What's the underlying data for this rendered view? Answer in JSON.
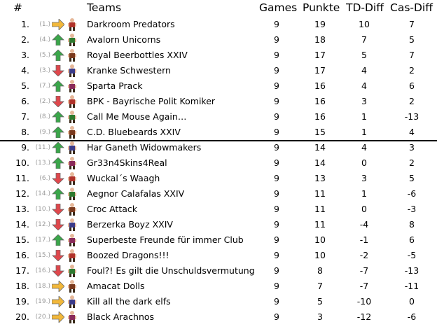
{
  "headers": {
    "rank": "#",
    "teams": "Teams",
    "games": "Games",
    "punkte": "Punkte",
    "td_diff": "TD-Diff",
    "cas_diff": "Cas-Diff"
  },
  "colors": {
    "up": "#3aa74a",
    "down": "#e0474c",
    "same": "#f2b83a"
  },
  "rows": [
    {
      "rank": "1.",
      "prev": "(1.)",
      "trend": "same",
      "icon": "player-sprite-icon",
      "team": "Darkroom Predators",
      "games": "9",
      "punkte": "19",
      "td": "10",
      "cas": "7"
    },
    {
      "rank": "2.",
      "prev": "(4.)",
      "trend": "up",
      "icon": "player-sprite-icon",
      "team": "Avalorn Unicorns",
      "games": "9",
      "punkte": "18",
      "td": "7",
      "cas": "5"
    },
    {
      "rank": "3.",
      "prev": "(5.)",
      "trend": "up",
      "icon": "player-sprite-icon",
      "team": "Royal Beerbottles XXIV",
      "games": "9",
      "punkte": "17",
      "td": "5",
      "cas": "7"
    },
    {
      "rank": "4.",
      "prev": "(3.)",
      "trend": "down",
      "icon": "player-sprite-icon",
      "team": "Kranke Schwestern",
      "games": "9",
      "punkte": "17",
      "td": "4",
      "cas": "2"
    },
    {
      "rank": "5.",
      "prev": "(7.)",
      "trend": "up",
      "icon": "player-sprite-icon",
      "team": "Sparta Prack",
      "games": "9",
      "punkte": "16",
      "td": "4",
      "cas": "6"
    },
    {
      "rank": "6.",
      "prev": "(2.)",
      "trend": "down",
      "icon": "player-sprite-icon",
      "team": "BPK - Bayrische Polit Komiker",
      "games": "9",
      "punkte": "16",
      "td": "3",
      "cas": "2"
    },
    {
      "rank": "7.",
      "prev": "(8.)",
      "trend": "up",
      "icon": "player-sprite-icon",
      "team": "Call Me Mouse Again…",
      "games": "9",
      "punkte": "16",
      "td": "1",
      "cas": "-13"
    },
    {
      "rank": "8.",
      "prev": "(9.)",
      "trend": "up",
      "icon": "player-sprite-icon",
      "team": "C.D. Bluebeards XXIV",
      "games": "9",
      "punkte": "15",
      "td": "1",
      "cas": "4"
    },
    {
      "rank": "9.",
      "prev": "(11.)",
      "trend": "up",
      "icon": "player-sprite-icon",
      "team": "Har Ganeth Widowmakers",
      "games": "9",
      "punkte": "14",
      "td": "4",
      "cas": "3"
    },
    {
      "rank": "10.",
      "prev": "(13.)",
      "trend": "up",
      "icon": "player-sprite-icon",
      "team": "Gr33n4Skins4Real",
      "games": "9",
      "punkte": "14",
      "td": "0",
      "cas": "2"
    },
    {
      "rank": "11.",
      "prev": "(6.)",
      "trend": "down",
      "icon": "player-sprite-icon",
      "team": "Wuckal´s Waagh",
      "games": "9",
      "punkte": "13",
      "td": "3",
      "cas": "5"
    },
    {
      "rank": "12.",
      "prev": "(14.)",
      "trend": "up",
      "icon": "player-sprite-icon",
      "team": "Aegnor Calafalas XXIV",
      "games": "9",
      "punkte": "11",
      "td": "1",
      "cas": "-6"
    },
    {
      "rank": "13.",
      "prev": "(10.)",
      "trend": "down",
      "icon": "player-sprite-icon",
      "team": "Croc Attack",
      "games": "9",
      "punkte": "11",
      "td": "0",
      "cas": "-3"
    },
    {
      "rank": "14.",
      "prev": "(12.)",
      "trend": "down",
      "icon": "player-sprite-icon",
      "team": "Berzerka Boyz XXIV",
      "games": "9",
      "punkte": "11",
      "td": "-4",
      "cas": "8"
    },
    {
      "rank": "15.",
      "prev": "(17.)",
      "trend": "up",
      "icon": "player-sprite-icon",
      "team": "Superbeste Freunde für immer Club",
      "games": "9",
      "punkte": "10",
      "td": "-1",
      "cas": "6"
    },
    {
      "rank": "16.",
      "prev": "(15.)",
      "trend": "down",
      "icon": "player-sprite-icon",
      "team": "Boozed Dragons!!!",
      "games": "9",
      "punkte": "10",
      "td": "-2",
      "cas": "-5"
    },
    {
      "rank": "17.",
      "prev": "(16.)",
      "trend": "down",
      "icon": "player-sprite-icon",
      "team": "Foul?! Es gilt die Unschuldsvermutung",
      "games": "9",
      "punkte": "8",
      "td": "-7",
      "cas": "-13"
    },
    {
      "rank": "18.",
      "prev": "(18.)",
      "trend": "same",
      "icon": "player-sprite-icon",
      "team": "Amacat Dolls",
      "games": "9",
      "punkte": "7",
      "td": "-7",
      "cas": "-11"
    },
    {
      "rank": "19.",
      "prev": "(19.)",
      "trend": "same",
      "icon": "player-sprite-icon",
      "team": "Kill all the dark elfs",
      "games": "9",
      "punkte": "5",
      "td": "-10",
      "cas": "0"
    },
    {
      "rank": "20.",
      "prev": "(20.)",
      "trend": "same",
      "icon": "player-sprite-icon",
      "team": "Black Arachnos",
      "games": "9",
      "punkte": "3",
      "td": "-12",
      "cas": "-6"
    }
  ]
}
